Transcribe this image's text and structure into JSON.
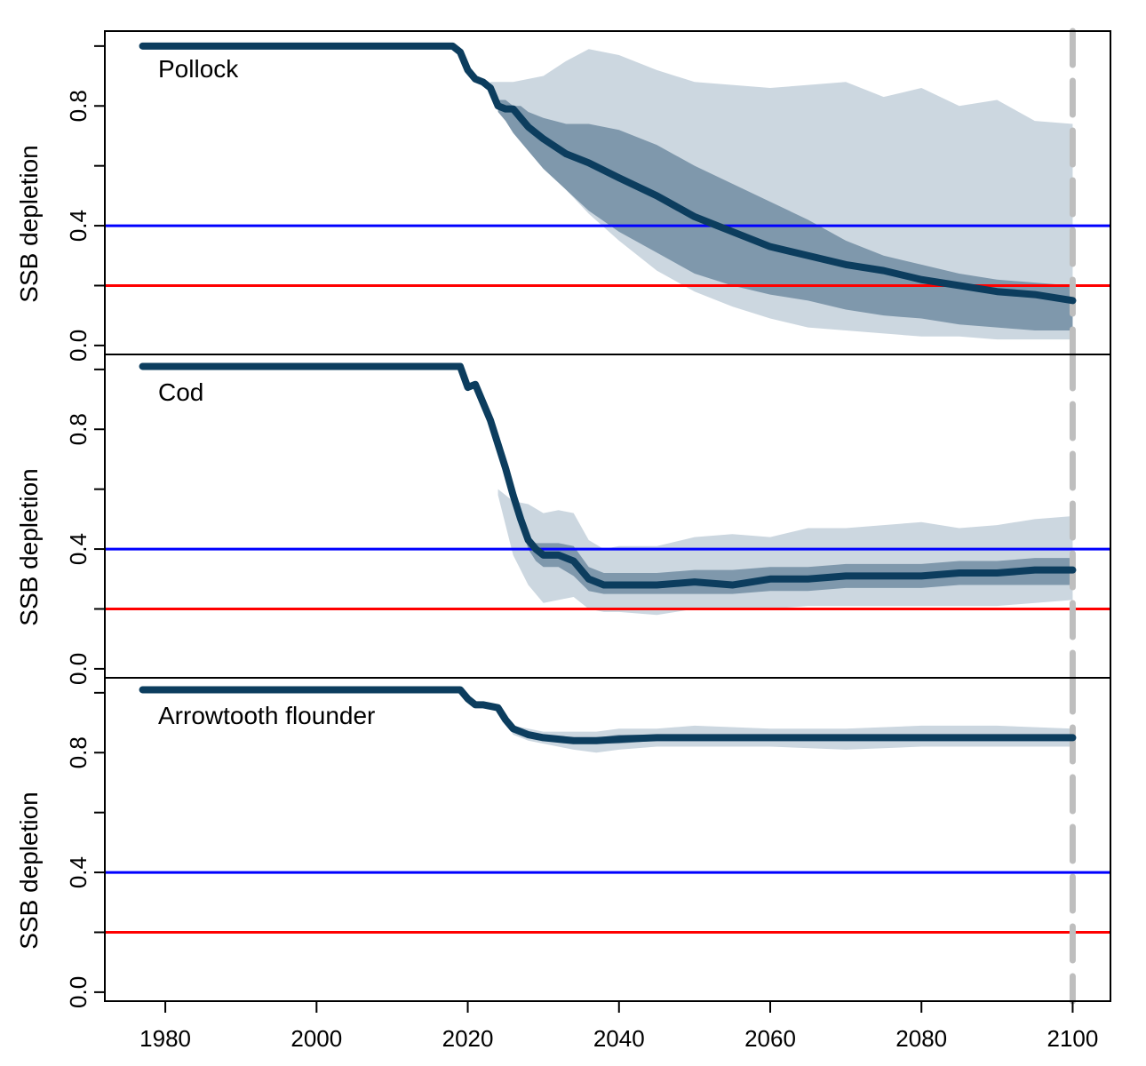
{
  "chart_data": {
    "type": "line",
    "x_axis": {
      "ticks": [
        1980,
        2000,
        2020,
        2040,
        2060,
        2080,
        2100
      ],
      "range": [
        1972,
        2105
      ]
    },
    "y_axis": {
      "label": "SSB depletion",
      "tick_labels": [
        "0.0",
        "0.4",
        "0.8"
      ],
      "ticks": [
        0.0,
        0.2,
        0.4,
        0.6,
        0.8,
        1.0
      ],
      "range": [
        -0.03,
        1.05
      ]
    },
    "reference_lines": [
      {
        "y": 0.4,
        "color": "#0000FF"
      },
      {
        "y": 0.2,
        "color": "#FF0000"
      }
    ],
    "vertical_line": {
      "x": 2100,
      "color": "#BEBEBE",
      "style": "dashed"
    },
    "colors": {
      "median": "#0C3D5E",
      "inner_band": "#7F98AC",
      "outer_band": "#CCD7E0"
    },
    "panels": [
      {
        "name": "Pollock",
        "median": [
          [
            1977,
            1.0
          ],
          [
            2018,
            1.0
          ],
          [
            2019,
            0.98
          ],
          [
            2020,
            0.92
          ],
          [
            2021,
            0.89
          ],
          [
            2022,
            0.88
          ],
          [
            2023,
            0.86
          ],
          [
            2024,
            0.8
          ],
          [
            2025,
            0.79
          ],
          [
            2026,
            0.79
          ],
          [
            2027,
            0.76
          ],
          [
            2028,
            0.73
          ],
          [
            2030,
            0.69
          ],
          [
            2033,
            0.64
          ],
          [
            2036,
            0.61
          ],
          [
            2040,
            0.56
          ],
          [
            2045,
            0.5
          ],
          [
            2050,
            0.43
          ],
          [
            2055,
            0.38
          ],
          [
            2060,
            0.33
          ],
          [
            2065,
            0.3
          ],
          [
            2070,
            0.27
          ],
          [
            2075,
            0.25
          ],
          [
            2080,
            0.22
          ],
          [
            2085,
            0.2
          ],
          [
            2090,
            0.18
          ],
          [
            2095,
            0.17
          ],
          [
            2100,
            0.15
          ]
        ],
        "inner": {
          "x": [
            2024,
            2025,
            2026,
            2027,
            2028,
            2030,
            2033,
            2036,
            2040,
            2045,
            2050,
            2055,
            2060,
            2065,
            2070,
            2075,
            2080,
            2085,
            2090,
            2095,
            2100
          ],
          "upper": [
            0.82,
            0.82,
            0.8,
            0.8,
            0.78,
            0.76,
            0.74,
            0.74,
            0.72,
            0.67,
            0.6,
            0.54,
            0.48,
            0.42,
            0.35,
            0.3,
            0.27,
            0.24,
            0.22,
            0.21,
            0.2
          ],
          "lower": [
            0.78,
            0.75,
            0.71,
            0.68,
            0.65,
            0.59,
            0.52,
            0.45,
            0.38,
            0.31,
            0.24,
            0.2,
            0.17,
            0.15,
            0.12,
            0.1,
            0.09,
            0.07,
            0.06,
            0.05,
            0.05
          ]
        },
        "outer": {
          "x": [
            2023,
            2026,
            2030,
            2033,
            2036,
            2040,
            2045,
            2050,
            2055,
            2060,
            2065,
            2070,
            2075,
            2080,
            2085,
            2090,
            2095,
            2100
          ],
          "upper": [
            0.88,
            0.88,
            0.9,
            0.95,
            0.99,
            0.97,
            0.92,
            0.88,
            0.87,
            0.86,
            0.87,
            0.88,
            0.83,
            0.86,
            0.8,
            0.82,
            0.75,
            0.74
          ],
          "lower": [
            0.87,
            0.75,
            0.62,
            0.52,
            0.44,
            0.35,
            0.25,
            0.18,
            0.13,
            0.09,
            0.06,
            0.05,
            0.04,
            0.03,
            0.03,
            0.02,
            0.02,
            0.02
          ]
        }
      },
      {
        "name": "Cod",
        "median": [
          [
            1977,
            1.01
          ],
          [
            2019,
            1.01
          ],
          [
            2020,
            0.94
          ],
          [
            2021,
            0.95
          ],
          [
            2022,
            0.89
          ],
          [
            2023,
            0.83
          ],
          [
            2024,
            0.75
          ],
          [
            2025,
            0.67
          ],
          [
            2026,
            0.58
          ],
          [
            2027,
            0.5
          ],
          [
            2028,
            0.43
          ],
          [
            2029,
            0.4
          ],
          [
            2030,
            0.38
          ],
          [
            2032,
            0.38
          ],
          [
            2034,
            0.36
          ],
          [
            2036,
            0.3
          ],
          [
            2038,
            0.28
          ],
          [
            2040,
            0.28
          ],
          [
            2045,
            0.28
          ],
          [
            2050,
            0.29
          ],
          [
            2055,
            0.28
          ],
          [
            2060,
            0.3
          ],
          [
            2065,
            0.3
          ],
          [
            2070,
            0.31
          ],
          [
            2075,
            0.31
          ],
          [
            2080,
            0.31
          ],
          [
            2085,
            0.32
          ],
          [
            2090,
            0.32
          ],
          [
            2095,
            0.33
          ],
          [
            2100,
            0.33
          ]
        ],
        "inner": {
          "x": [
            2027,
            2028,
            2029,
            2030,
            2032,
            2034,
            2036,
            2038,
            2040,
            2045,
            2050,
            2055,
            2060,
            2065,
            2070,
            2075,
            2080,
            2085,
            2090,
            2095,
            2100
          ],
          "upper": [
            0.5,
            0.44,
            0.42,
            0.42,
            0.42,
            0.41,
            0.34,
            0.32,
            0.32,
            0.32,
            0.33,
            0.33,
            0.34,
            0.34,
            0.35,
            0.35,
            0.35,
            0.36,
            0.36,
            0.37,
            0.37
          ],
          "lower": [
            0.49,
            0.4,
            0.36,
            0.34,
            0.34,
            0.31,
            0.26,
            0.25,
            0.25,
            0.25,
            0.25,
            0.25,
            0.26,
            0.26,
            0.27,
            0.27,
            0.27,
            0.28,
            0.28,
            0.28,
            0.28
          ]
        },
        "outer": {
          "x": [
            2024,
            2026,
            2028,
            2030,
            2032,
            2034,
            2036,
            2038,
            2040,
            2045,
            2050,
            2055,
            2060,
            2065,
            2070,
            2075,
            2080,
            2085,
            2090,
            2095,
            2100
          ],
          "upper": [
            0.6,
            0.56,
            0.55,
            0.52,
            0.53,
            0.52,
            0.43,
            0.4,
            0.41,
            0.41,
            0.44,
            0.45,
            0.44,
            0.47,
            0.47,
            0.48,
            0.49,
            0.47,
            0.48,
            0.5,
            0.51
          ],
          "lower": [
            0.58,
            0.38,
            0.28,
            0.22,
            0.23,
            0.24,
            0.2,
            0.19,
            0.19,
            0.18,
            0.2,
            0.2,
            0.2,
            0.21,
            0.21,
            0.21,
            0.21,
            0.21,
            0.21,
            0.22,
            0.23
          ]
        }
      },
      {
        "name": "Arrowtooth flounder",
        "median": [
          [
            1977,
            1.01
          ],
          [
            2019,
            1.01
          ],
          [
            2020,
            0.98
          ],
          [
            2021,
            0.96
          ],
          [
            2022,
            0.96
          ],
          [
            2024,
            0.95
          ],
          [
            2025,
            0.91
          ],
          [
            2026,
            0.88
          ],
          [
            2028,
            0.86
          ],
          [
            2030,
            0.85
          ],
          [
            2034,
            0.84
          ],
          [
            2037,
            0.84
          ],
          [
            2040,
            0.845
          ],
          [
            2045,
            0.85
          ],
          [
            2050,
            0.85
          ],
          [
            2060,
            0.85
          ],
          [
            2070,
            0.85
          ],
          [
            2080,
            0.85
          ],
          [
            2090,
            0.85
          ],
          [
            2100,
            0.85
          ]
        ],
        "inner": {
          "x": [
            2026,
            2028,
            2030,
            2034,
            2037,
            2040,
            2045,
            2050,
            2060,
            2070,
            2080,
            2090,
            2100
          ],
          "upper": [
            0.89,
            0.87,
            0.86,
            0.85,
            0.85,
            0.86,
            0.86,
            0.86,
            0.86,
            0.86,
            0.86,
            0.86,
            0.86
          ],
          "lower": [
            0.87,
            0.85,
            0.84,
            0.83,
            0.83,
            0.83,
            0.84,
            0.84,
            0.84,
            0.84,
            0.84,
            0.84,
            0.84
          ]
        },
        "outer": {
          "x": [
            2025,
            2026,
            2028,
            2030,
            2034,
            2037,
            2040,
            2045,
            2050,
            2060,
            2070,
            2080,
            2090,
            2100
          ],
          "upper": [
            0.92,
            0.89,
            0.88,
            0.87,
            0.87,
            0.87,
            0.88,
            0.88,
            0.89,
            0.88,
            0.88,
            0.89,
            0.89,
            0.88
          ],
          "lower": [
            0.9,
            0.86,
            0.84,
            0.83,
            0.81,
            0.8,
            0.81,
            0.82,
            0.82,
            0.82,
            0.81,
            0.82,
            0.82,
            0.82
          ]
        }
      }
    ]
  }
}
